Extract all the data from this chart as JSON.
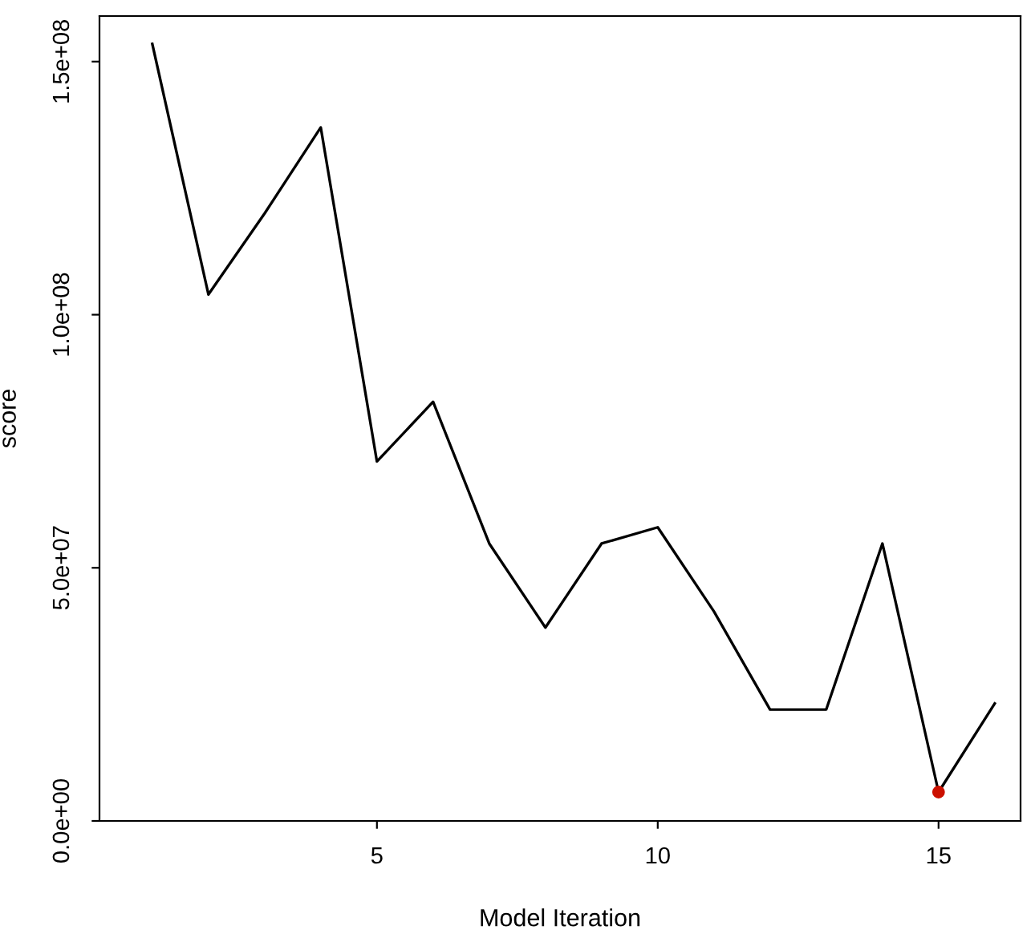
{
  "chart_data": {
    "type": "line",
    "xlabel": "Model Iteration",
    "ylabel": "score",
    "x": [
      1,
      2,
      3,
      4,
      5,
      6,
      7,
      8,
      9,
      10,
      11,
      12,
      13,
      14,
      15,
      16
    ],
    "series": [
      {
        "color": "#000000",
        "values": [
          153500000,
          104000000,
          120000000,
          137000000,
          71000000,
          82800000,
          54800000,
          38200000,
          54800000,
          58000000,
          41400000,
          22000000,
          22000000,
          54800000,
          5700000,
          23200000
        ]
      },
      {
        "type": "scatter",
        "color": "#cc1100",
        "x": [
          15
        ],
        "values": [
          5700000
        ]
      }
    ],
    "xlim": [
      0.06,
      16.46
    ],
    "ylim": [
      0,
      159000000
    ],
    "xticks": [
      5,
      10,
      15
    ],
    "yticks": [
      {
        "value": 0,
        "label": "0.0e+00"
      },
      {
        "value": 50000000,
        "label": "5.0e+07"
      },
      {
        "value": 100000000,
        "label": "1.0e+08"
      },
      {
        "value": 150000000,
        "label": "1.5e+08"
      }
    ],
    "grid": false,
    "legend": false
  }
}
